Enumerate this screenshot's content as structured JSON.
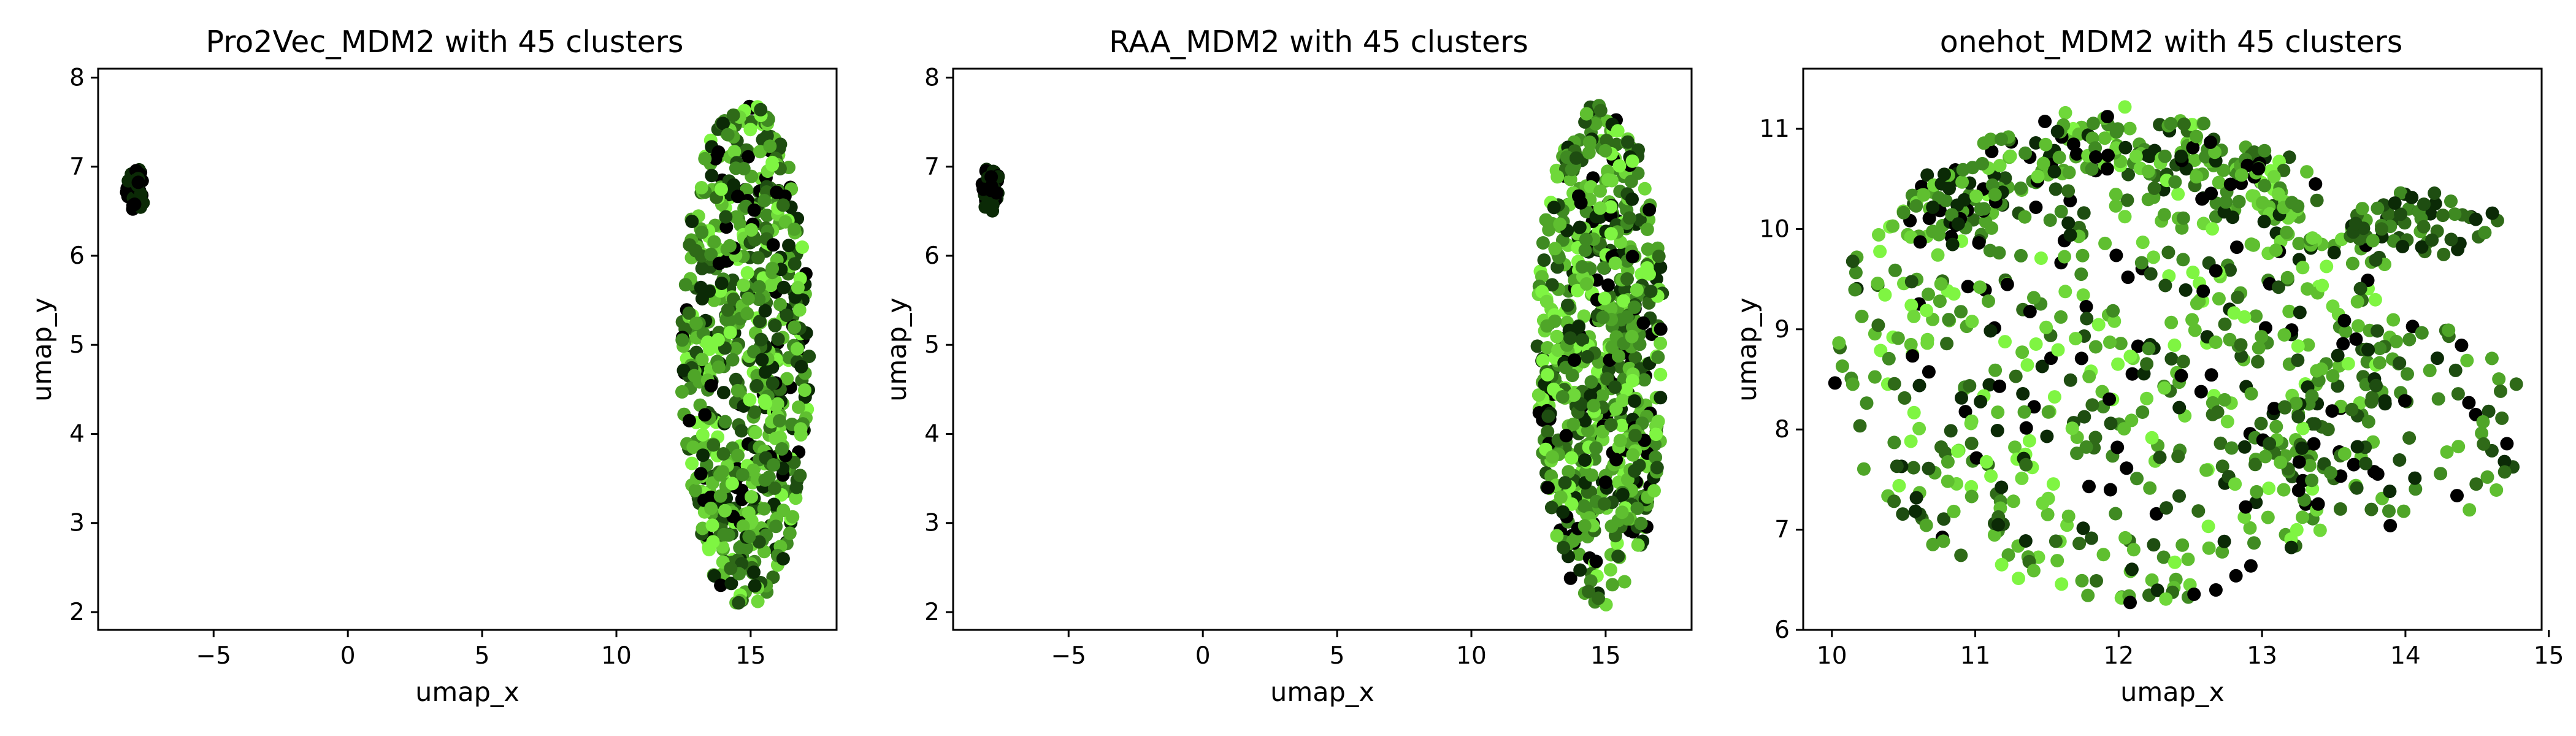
{
  "palette": [
    "#000000",
    "#0b2a06",
    "#1e4d11",
    "#2f6a18",
    "#3f8a22",
    "#4fa528",
    "#5fbf30",
    "#6fd83a",
    "#7ff542"
  ],
  "chart_data": [
    {
      "type": "scatter",
      "title": "Pro2Vec_MDM2 with 45 clusters",
      "xlabel": "umap_x",
      "ylabel": "umap_y",
      "xlim": [
        -9.3,
        18.2
      ],
      "ylim": [
        1.8,
        8.1
      ],
      "xticks": [
        "−5",
        "0",
        "5",
        "10",
        "15"
      ],
      "xtick_values": [
        -5,
        0,
        5,
        10,
        15
      ],
      "yticks": [
        "2",
        "3",
        "4",
        "5",
        "6",
        "7",
        "8"
      ],
      "ytick_values": [
        2,
        3,
        4,
        5,
        6,
        7,
        8
      ],
      "grid": false,
      "legend": "none",
      "n_clusters": 45,
      "clusters": [
        {
          "shape": "ellipse",
          "center": [
            -7.9,
            6.75
          ],
          "radius": [
            0.35,
            0.25
          ],
          "count": 40,
          "colors": [
            0,
            1
          ]
        },
        {
          "shape": "ellipse",
          "center": [
            14.8,
            4.9
          ],
          "radius": [
            2.4,
            2.85
          ],
          "count": 700,
          "colors": [
            0,
            1,
            2,
            3,
            4,
            5,
            6,
            7,
            8
          ]
        }
      ]
    },
    {
      "type": "scatter",
      "title": "RAA_MDM2 with 45 clusters",
      "xlabel": "umap_x",
      "ylabel": "umap_y",
      "xlim": [
        -9.3,
        18.2
      ],
      "ylim": [
        1.8,
        8.1
      ],
      "xticks": [
        "−5",
        "0",
        "5",
        "10",
        "15"
      ],
      "xtick_values": [
        -5,
        0,
        5,
        10,
        15
      ],
      "yticks": [
        "2",
        "3",
        "4",
        "5",
        "6",
        "7",
        "8"
      ],
      "ytick_values": [
        2,
        3,
        4,
        5,
        6,
        7,
        8
      ],
      "grid": false,
      "legend": "none",
      "n_clusters": 45,
      "clusters": [
        {
          "shape": "ellipse",
          "center": [
            -7.9,
            6.75
          ],
          "radius": [
            0.35,
            0.25
          ],
          "count": 40,
          "colors": [
            0,
            1
          ]
        },
        {
          "shape": "ellipse",
          "center": [
            14.8,
            4.9
          ],
          "radius": [
            2.4,
            2.85
          ],
          "count": 700,
          "colors": [
            0,
            1,
            2,
            3,
            4,
            5,
            6,
            7,
            8
          ]
        }
      ]
    },
    {
      "type": "scatter",
      "title": "onehot_MDM2 with 45 clusters",
      "xlabel": "umap_x",
      "ylabel": "umap_y",
      "xlim": [
        9.8,
        14.95
      ],
      "ylim": [
        6.0,
        11.6
      ],
      "xticks": [
        "10",
        "11",
        "12",
        "13",
        "14",
        "15"
      ],
      "xtick_values": [
        10,
        11,
        12,
        13,
        14,
        15
      ],
      "yticks": [
        "6",
        "7",
        "8",
        "9",
        "10",
        "11"
      ],
      "ytick_values": [
        6,
        7,
        8,
        9,
        10,
        11
      ],
      "grid": false,
      "legend": "none",
      "n_clusters": 45,
      "clusters": [
        {
          "shape": "disk",
          "center": [
            12.0,
            8.75
          ],
          "radius": [
            2.0,
            2.5
          ],
          "count": 650,
          "colors": [
            0,
            1,
            2,
            3,
            4,
            5,
            6,
            7,
            8
          ]
        },
        {
          "shape": "arc",
          "center": [
            11.9,
            9.3
          ],
          "radius": [
            1.6,
            0.3
          ],
          "count": 180,
          "colors": [
            0,
            1,
            4,
            5,
            6,
            7
          ]
        },
        {
          "shape": "ellipse",
          "center": [
            14.1,
            10.05
          ],
          "radius": [
            0.55,
            0.32
          ],
          "count": 60,
          "colors": [
            1,
            2,
            3,
            4,
            5
          ]
        },
        {
          "shape": "ellipse",
          "center": [
            13.9,
            8.05
          ],
          "radius": [
            0.95,
            1.05
          ],
          "count": 110,
          "colors": [
            0,
            1,
            2,
            3,
            4,
            5,
            6
          ]
        }
      ]
    }
  ]
}
